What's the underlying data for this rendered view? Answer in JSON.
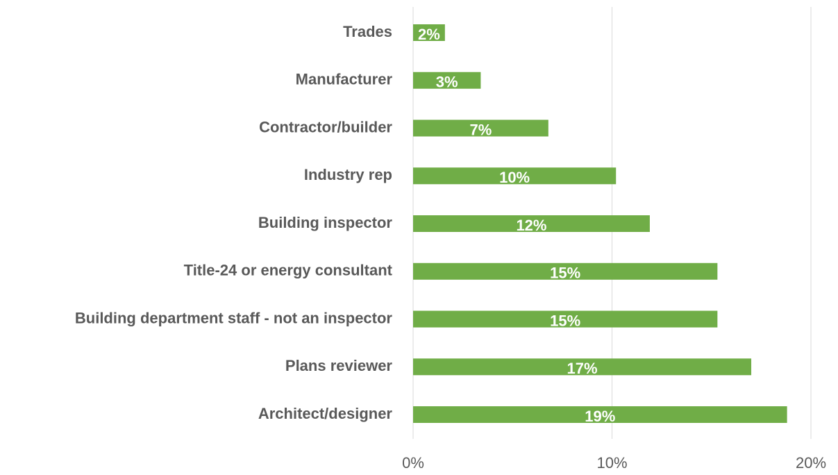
{
  "chart_data": {
    "type": "hbar",
    "categories": [
      "Trades",
      "Manufacturer",
      "Contractor/builder",
      "Industry rep",
      "Building inspector",
      "Title-24 or energy consultant",
      "Building department staff - not an inspector",
      "Plans reviewer",
      "Architect/designer"
    ],
    "values": [
      1.6,
      3.4,
      6.8,
      10.2,
      11.9,
      15.3,
      15.3,
      17.0,
      18.8
    ],
    "value_labels": [
      "2%",
      "3%",
      "7%",
      "10%",
      "12%",
      "15%",
      "15%",
      "17%",
      "19%"
    ],
    "color": "#70ad47",
    "xlim": [
      0,
      20
    ],
    "xticks": [
      {
        "value": 0,
        "label": "0%"
      },
      {
        "value": 10,
        "label": "10%"
      },
      {
        "value": 20,
        "label": "20%"
      }
    ],
    "grid": true
  }
}
